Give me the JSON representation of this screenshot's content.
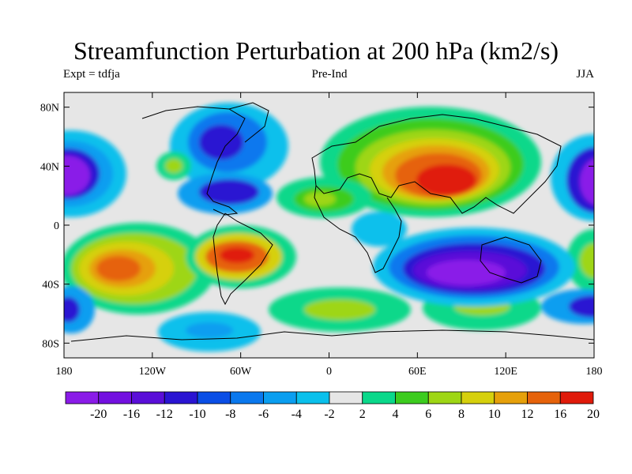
{
  "map": {
    "title": "Streamfunction Perturbation at 200 hPa (km2/s)",
    "left_label": "Expt = tdfja",
    "center_label": "Pre-Ind",
    "right_label": "JJA",
    "lat_ticks": [
      {
        "value": 80,
        "label": "80N"
      },
      {
        "value": 40,
        "label": "40N"
      },
      {
        "value": 0,
        "label": "0"
      },
      {
        "value": -40,
        "label": "40S"
      },
      {
        "value": -80,
        "label": "80S"
      }
    ],
    "lon_ticks": [
      {
        "value": -180,
        "label": "180"
      },
      {
        "value": -120,
        "label": "120W"
      },
      {
        "value": -60,
        "label": "60W"
      },
      {
        "value": 0,
        "label": "0"
      },
      {
        "value": 60,
        "label": "60E"
      },
      {
        "value": 120,
        "label": "120E"
      },
      {
        "value": 180,
        "label": "180"
      }
    ],
    "colorbar": {
      "levels": [
        "-20",
        "-16",
        "-12",
        "-10",
        "-8",
        "-6",
        "-4",
        "-2",
        "2",
        "4",
        "6",
        "8",
        "10",
        "12",
        "16",
        "20"
      ],
      "colors": [
        "#8a1be8",
        "#7310e0",
        "#5a0ed8",
        "#2a14d2",
        "#0a4ee6",
        "#0a78ee",
        "#0a9ef0",
        "#0ac0ec",
        "#e6e6e6",
        "#0ad88a",
        "#3ccc1e",
        "#9ed614",
        "#d6d00c",
        "#e6a00a",
        "#e6620a",
        "#e01a0a"
      ]
    }
  }
}
